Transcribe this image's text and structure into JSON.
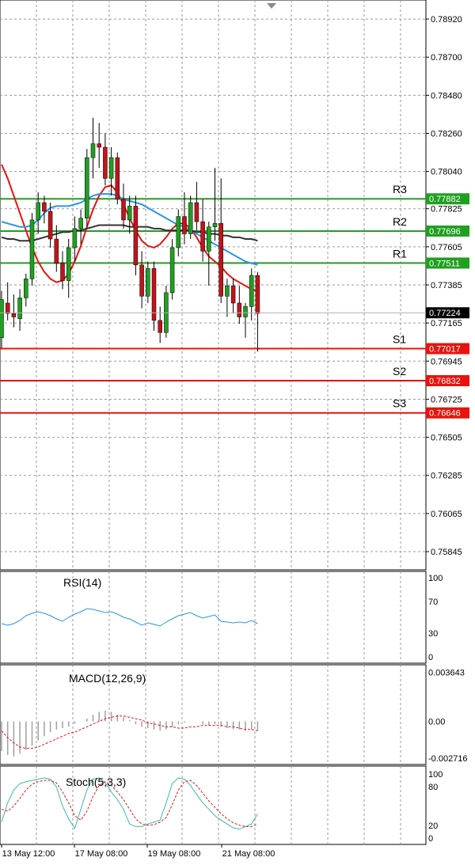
{
  "chart_data": [
    {
      "type": "candlestick",
      "name": "price",
      "ylim": [
        0.7574,
        0.7903
      ],
      "y_ticks": [
        "0.78920",
        "0.78700",
        "0.78480",
        "0.78260",
        "0.78040",
        "0.77825",
        "0.77605",
        "0.77385",
        "0.77165",
        "0.76945",
        "0.76725",
        "0.76505",
        "0.76285",
        "0.76065",
        "0.75845"
      ],
      "x_labels": [
        "13 May 12:00",
        "17 May 08:00",
        "19 May 08:00",
        "21 May 08:00"
      ],
      "current_price": "0.77224",
      "levels": [
        {
          "name": "R3",
          "value": "0.77882",
          "kind": "resistance",
          "color": "#1fa01f"
        },
        {
          "name": "R2",
          "value": "0.77696",
          "kind": "resistance",
          "color": "#1fa01f"
        },
        {
          "name": "R1",
          "value": "0.77511",
          "kind": "resistance",
          "color": "#1fa01f"
        },
        {
          "name": "S1",
          "value": "0.77017",
          "kind": "support",
          "color": "#e8130f"
        },
        {
          "name": "S2",
          "value": "0.76832",
          "kind": "support",
          "color": "#e8130f"
        },
        {
          "name": "S3",
          "value": "0.76646",
          "kind": "support",
          "color": "#e8130f"
        }
      ],
      "candles": [
        [
          0.7708,
          0.7735,
          0.7702,
          0.773
        ],
        [
          0.7728,
          0.774,
          0.7718,
          0.7722
        ],
        [
          0.7722,
          0.7733,
          0.7714,
          0.772
        ],
        [
          0.7719,
          0.7736,
          0.7712,
          0.7731
        ],
        [
          0.7731,
          0.7745,
          0.7726,
          0.7742
        ],
        [
          0.7742,
          0.778,
          0.7738,
          0.7776
        ],
        [
          0.7776,
          0.7792,
          0.7768,
          0.7786
        ],
        [
          0.7786,
          0.779,
          0.7774,
          0.7781
        ],
        [
          0.7781,
          0.7786,
          0.776,
          0.7765
        ],
        [
          0.7765,
          0.7773,
          0.7746,
          0.7751
        ],
        [
          0.7751,
          0.7758,
          0.7736,
          0.7741
        ],
        [
          0.7741,
          0.7765,
          0.7731,
          0.776
        ],
        [
          0.776,
          0.7778,
          0.7752,
          0.7771
        ],
        [
          0.7771,
          0.7782,
          0.7762,
          0.7777
        ],
        [
          0.7777,
          0.7817,
          0.7772,
          0.7812
        ],
        [
          0.7812,
          0.7835,
          0.78,
          0.782
        ],
        [
          0.782,
          0.7832,
          0.7806,
          0.7818
        ],
        [
          0.7818,
          0.7826,
          0.7796,
          0.78
        ],
        [
          0.78,
          0.7818,
          0.779,
          0.7812
        ],
        [
          0.7812,
          0.7815,
          0.7785,
          0.7788
        ],
        [
          0.7788,
          0.7797,
          0.7771,
          0.7776
        ],
        [
          0.7776,
          0.779,
          0.7768,
          0.7784
        ],
        [
          0.7784,
          0.779,
          0.7744,
          0.775
        ],
        [
          0.775,
          0.7758,
          0.7725,
          0.7732
        ],
        [
          0.7732,
          0.7752,
          0.7728,
          0.7748
        ],
        [
          0.7748,
          0.7752,
          0.7712,
          0.7718
        ],
        [
          0.7718,
          0.7726,
          0.7705,
          0.7711
        ],
        [
          0.7711,
          0.7738,
          0.7708,
          0.7734
        ],
        [
          0.7734,
          0.7765,
          0.773,
          0.776
        ],
        [
          0.776,
          0.7782,
          0.7755,
          0.7778
        ],
        [
          0.7778,
          0.7792,
          0.7762,
          0.7768
        ],
        [
          0.7768,
          0.779,
          0.7765,
          0.7786
        ],
        [
          0.7786,
          0.7798,
          0.777,
          0.7775
        ],
        [
          0.7775,
          0.7788,
          0.7752,
          0.7758
        ],
        [
          0.7758,
          0.7775,
          0.7738,
          0.7772
        ],
        [
          0.7772,
          0.7806,
          0.7764,
          0.7774
        ],
        [
          0.7774,
          0.78,
          0.7728,
          0.7732
        ],
        [
          0.7732,
          0.7742,
          0.772,
          0.7738
        ],
        [
          0.7738,
          0.7742,
          0.7722,
          0.7728
        ],
        [
          0.7728,
          0.7738,
          0.7716,
          0.772
        ],
        [
          0.772,
          0.7728,
          0.7708,
          0.7726
        ],
        [
          0.7726,
          0.7748,
          0.7718,
          0.7744
        ],
        [
          0.7744,
          0.7746,
          0.77,
          0.7722
        ]
      ],
      "moving_averages": [
        {
          "color": "#e8130f",
          "values": [
            0.7808,
            0.78,
            0.779,
            0.778,
            0.777,
            0.776,
            0.7752,
            0.7746,
            0.7742,
            0.774,
            0.7741,
            0.7745,
            0.7752,
            0.7761,
            0.7772,
            0.7782,
            0.779,
            0.7795,
            0.7796,
            0.7792,
            0.7785,
            0.7777,
            0.777,
            0.7764,
            0.7761,
            0.776,
            0.7762,
            0.7766,
            0.7771,
            0.7774,
            0.7774,
            0.7771,
            0.7766,
            0.776,
            0.7755,
            0.7752,
            0.7749,
            0.7745,
            0.7742,
            0.774,
            0.7738,
            0.7736,
            0.7735
          ]
        },
        {
          "color": "#2a95e8",
          "values": [
            0.7775,
            0.7774,
            0.7773,
            0.7772,
            0.7772,
            0.7773,
            0.7776,
            0.778,
            0.7783,
            0.7784,
            0.7784,
            0.7784,
            0.7785,
            0.7786,
            0.7788,
            0.779,
            0.7791,
            0.7791,
            0.7791,
            0.779,
            0.7788,
            0.7787,
            0.7786,
            0.7785,
            0.7783,
            0.7781,
            0.7779,
            0.7777,
            0.7775,
            0.7773,
            0.7772,
            0.777,
            0.7768,
            0.7766,
            0.7764,
            0.7762,
            0.776,
            0.7758,
            0.7756,
            0.7754,
            0.7752,
            0.7751,
            0.775
          ]
        },
        {
          "color": "#333333",
          "values": [
            0.7766,
            0.7765,
            0.7765,
            0.7764,
            0.7764,
            0.7764,
            0.7765,
            0.7766,
            0.7767,
            0.7768,
            0.7769,
            0.7769,
            0.777,
            0.777,
            0.7771,
            0.7772,
            0.7773,
            0.7773,
            0.7773,
            0.7773,
            0.7773,
            0.7772,
            0.7772,
            0.7772,
            0.7772,
            0.7771,
            0.7771,
            0.777,
            0.777,
            0.777,
            0.777,
            0.777,
            0.7769,
            0.7769,
            0.7768,
            0.7768,
            0.7767,
            0.7767,
            0.7766,
            0.7766,
            0.7765,
            0.7765,
            0.7764
          ]
        }
      ]
    },
    {
      "type": "line",
      "name": "RSI(14)",
      "ylim": [
        0,
        100
      ],
      "y_ticks": [
        "100",
        "70",
        "30",
        "0"
      ],
      "color": "#2a95e8",
      "values": [
        42,
        40,
        42,
        46,
        52,
        55,
        57,
        55,
        52,
        48,
        45,
        50,
        54,
        57,
        61,
        60,
        58,
        56,
        57,
        54,
        50,
        48,
        44,
        40,
        43,
        41,
        39,
        44,
        48,
        52,
        54,
        56,
        52,
        49,
        51,
        53,
        45,
        44,
        43,
        44,
        43,
        46,
        42
      ]
    },
    {
      "type": "bar",
      "name": "MACD(12,26,9)",
      "ylim": [
        -0.0032,
        0.0042
      ],
      "y_ticks": [
        "0.003643",
        "0.00",
        "-0.002716"
      ],
      "bar_color": "#a0a0a0",
      "signal_color": "#e8130f",
      "histogram": [
        -0.0022,
        -0.0025,
        -0.0026,
        -0.0024,
        -0.0021,
        -0.0018,
        -0.0014,
        -0.0011,
        -0.0008,
        -0.0006,
        -0.0005,
        -0.0004,
        -0.0002,
        0.0,
        0.0002,
        0.0005,
        0.0007,
        0.0008,
        0.0007,
        0.0005,
        0.0003,
        0.0001,
        -0.0002,
        -0.0004,
        -0.0005,
        -0.0006,
        -0.0007,
        -0.0006,
        -0.0004,
        -0.0002,
        -0.0001,
        0.0,
        0.0,
        -0.0002,
        -0.0003,
        -0.0002,
        -0.0004,
        -0.0005,
        -0.0006,
        -0.0006,
        -0.0007,
        -0.0006,
        -0.0007
      ],
      "signal": [
        -0.0007,
        -0.0012,
        -0.0016,
        -0.0019,
        -0.002,
        -0.002,
        -0.0019,
        -0.0017,
        -0.0015,
        -0.0013,
        -0.0011,
        -0.0009,
        -0.0008,
        -0.0006,
        -0.0004,
        -0.0002,
        0.0,
        0.0002,
        0.0003,
        0.0004,
        0.0004,
        0.0003,
        0.0002,
        0.0001,
        -0.0001,
        -0.0002,
        -0.0003,
        -0.0004,
        -0.0004,
        -0.0005,
        -0.0005,
        -0.0004,
        -0.0004,
        -0.0003,
        -0.0003,
        -0.0003,
        -0.0003,
        -0.0004,
        -0.0004,
        -0.0005,
        -0.0006,
        -0.0006,
        -0.0007
      ]
    },
    {
      "type": "line",
      "name": "Stoch(5,3,3)",
      "ylim": [
        0,
        100
      ],
      "y_ticks": [
        "100",
        "80",
        "20",
        "0"
      ],
      "series": [
        {
          "color": "#3bb9b0",
          "values": [
            25,
            55,
            75,
            85,
            88,
            90,
            92,
            94,
            92,
            80,
            50,
            30,
            15,
            45,
            75,
            92,
            94,
            86,
            72,
            60,
            45,
            22,
            18,
            18,
            22,
            25,
            28,
            55,
            85,
            94,
            92,
            82,
            68,
            55,
            45,
            35,
            28,
            22,
            16,
            14,
            18,
            22,
            38
          ]
        },
        {
          "color": "#e8130f",
          "values": [
            45,
            42,
            50,
            62,
            75,
            84,
            88,
            90,
            90,
            86,
            72,
            55,
            35,
            28,
            42,
            65,
            82,
            88,
            82,
            72,
            60,
            45,
            30,
            22,
            20,
            21,
            25,
            32,
            52,
            75,
            88,
            90,
            82,
            70,
            58,
            48,
            38,
            30,
            24,
            20,
            18,
            18,
            22
          ]
        }
      ]
    }
  ]
}
